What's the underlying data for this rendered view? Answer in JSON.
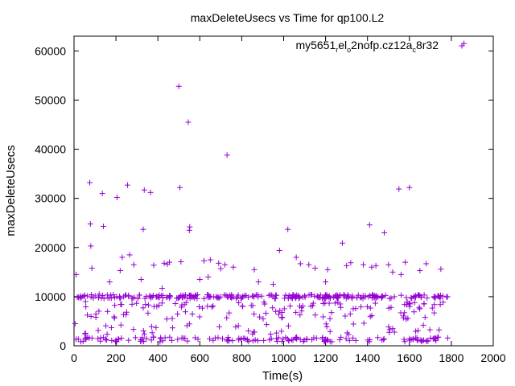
{
  "chart_data": {
    "type": "scatter",
    "title": "maxDeleteUsecs vs Time for qp100.L2",
    "xlabel": "Time(s)",
    "ylabel": "maxDeleteUsecs",
    "xlim": [
      0,
      2000
    ],
    "ylim": [
      0,
      63000
    ],
    "xticks": [
      0,
      200,
      400,
      600,
      800,
      1000,
      1200,
      1400,
      1600,
      1800,
      2000
    ],
    "yticks": [
      0,
      10000,
      20000,
      30000,
      40000,
      50000,
      60000
    ],
    "xtick_labels": [
      "0",
      "200",
      "400",
      "600",
      "800",
      "1000",
      "1200",
      "1400",
      "1600",
      "1800",
      "2000"
    ],
    "ytick_labels": [
      "0",
      "10000",
      "20000",
      "30000",
      "40000",
      "50000",
      "60000"
    ],
    "grid": false,
    "legend_position": "top-right",
    "marker": "+",
    "color": "#9400d3",
    "legend": {
      "parts": [
        "my5651",
        "r",
        "el",
        "o",
        "2nofp.cz12a",
        "c",
        "8r32"
      ],
      "subscripts": [
        false,
        true,
        false,
        true,
        false,
        true,
        false
      ]
    },
    "series": [
      {
        "name": "my5651_rel_o2nofp.cz12a_c8r32",
        "outliers": [
          [
            5,
            4500
          ],
          [
            10,
            14500
          ],
          [
            55,
            9000
          ],
          [
            75,
            33200
          ],
          [
            78,
            24800
          ],
          [
            80,
            20300
          ],
          [
            85,
            15800
          ],
          [
            120,
            10500
          ],
          [
            135,
            31000
          ],
          [
            140,
            24300
          ],
          [
            170,
            13000
          ],
          [
            205,
            30200
          ],
          [
            220,
            15300
          ],
          [
            230,
            18000
          ],
          [
            255,
            32700
          ],
          [
            265,
            18500
          ],
          [
            285,
            16500
          ],
          [
            330,
            23700
          ],
          [
            335,
            31700
          ],
          [
            365,
            31200
          ],
          [
            380,
            16400
          ],
          [
            420,
            11700
          ],
          [
            430,
            16800
          ],
          [
            445,
            16600
          ],
          [
            455,
            17000
          ],
          [
            500,
            52800
          ],
          [
            505,
            32200
          ],
          [
            510,
            17100
          ],
          [
            545,
            45500
          ],
          [
            550,
            23500
          ],
          [
            552,
            24200
          ],
          [
            620,
            17300
          ],
          [
            650,
            17500
          ],
          [
            690,
            16800
          ],
          [
            700,
            15700
          ],
          [
            720,
            16500
          ],
          [
            730,
            38800
          ],
          [
            760,
            16000
          ],
          [
            860,
            15500
          ],
          [
            980,
            19400
          ],
          [
            1020,
            23700
          ],
          [
            1060,
            18000
          ],
          [
            1080,
            16700
          ],
          [
            1120,
            16500
          ],
          [
            1150,
            15800
          ],
          [
            1210,
            15500
          ],
          [
            1280,
            20900
          ],
          [
            1300,
            16300
          ],
          [
            1320,
            16900
          ],
          [
            1380,
            16500
          ],
          [
            1410,
            24600
          ],
          [
            1420,
            16000
          ],
          [
            1440,
            16300
          ],
          [
            1480,
            23000
          ],
          [
            1500,
            16500
          ],
          [
            1520,
            15000
          ],
          [
            1550,
            31900
          ],
          [
            1580,
            17000
          ],
          [
            1600,
            32200
          ],
          [
            1650,
            15300
          ],
          [
            1680,
            16700
          ],
          [
            1750,
            15600
          ],
          [
            1860,
            61500
          ],
          [
            1200,
            13000
          ],
          [
            950,
            12500
          ],
          [
            880,
            13000
          ],
          [
            640,
            14000
          ],
          [
            320,
            13500
          ],
          [
            600,
            13500
          ],
          [
            1560,
            14500
          ]
        ],
        "clusters": [
          {
            "center": 10000,
            "spread": 400,
            "count": 260,
            "x_range": [
              5,
              1790
            ]
          },
          {
            "center": 8200,
            "spread": 700,
            "count": 70,
            "x_range": [
              40,
              1780
            ]
          },
          {
            "center": 6300,
            "spread": 900,
            "count": 50,
            "x_range": [
              60,
              1770
            ]
          },
          {
            "center": 3500,
            "spread": 1200,
            "count": 45,
            "x_range": [
              30,
              1780
            ]
          },
          {
            "center": 1300,
            "spread": 500,
            "count": 150,
            "x_range": [
              5,
              1790
            ]
          }
        ]
      }
    ]
  }
}
